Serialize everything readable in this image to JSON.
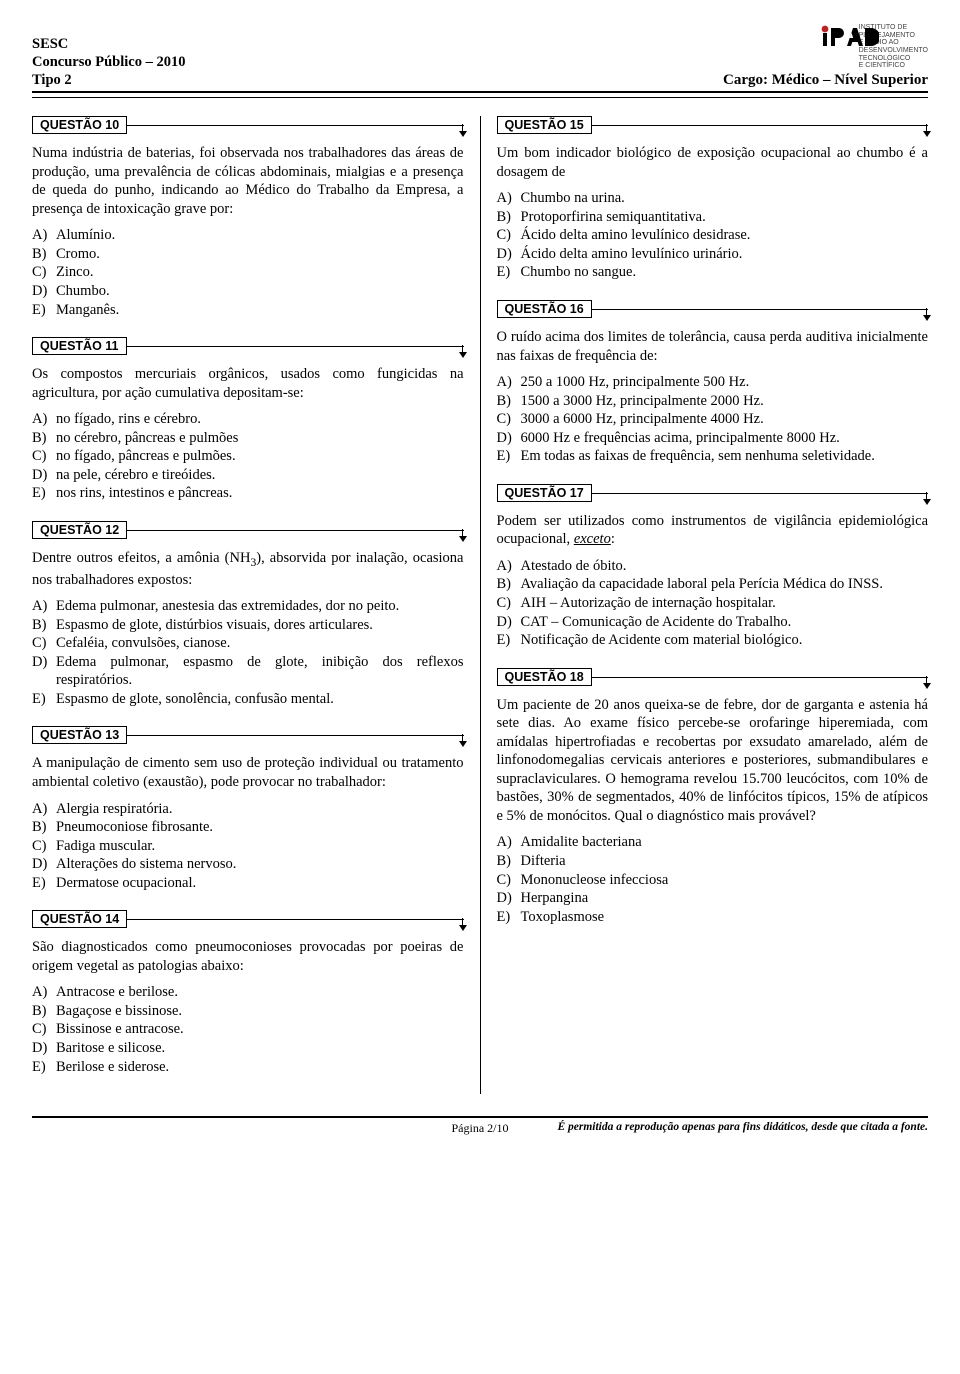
{
  "header": {
    "org": "SESC",
    "concurso": "Concurso Público – 2010",
    "tipo": "Tipo 2",
    "cargo": "Cargo: Médico – Nível Superior",
    "logo_name": "IPAD",
    "logo_sub": "INSTITUTO DE\nPLANEJAMENTO\nE APOIO AO\nDESENVOLVIMENTO\nTECNOLÓGICO\nE CIENTÍFICO"
  },
  "questions_left": [
    {
      "label": "QUESTÃO 10",
      "stem": "Numa indústria de baterias, foi observada nos trabalhadores das áreas de produção, uma prevalência de cólicas abdominais, mialgias e a presença de queda do punho, indicando ao Médico do Trabalho da Empresa, a presença de intoxicação grave por:",
      "opts": [
        "Alumínio.",
        "Cromo.",
        "Zinco.",
        "Chumbo.",
        "Manganês."
      ]
    },
    {
      "label": "QUESTÃO 11",
      "stem": "Os compostos mercuriais orgânicos, usados como fungicidas na agricultura, por ação cumulativa depositam-se:",
      "opts": [
        "no fígado, rins e cérebro.",
        "no cérebro, pâncreas e pulmões",
        "no fígado, pâncreas e pulmões.",
        "na pele, cérebro e tireóides.",
        "nos rins, intestinos e pâncreas."
      ]
    },
    {
      "label": "QUESTÃO 12",
      "stem_html": "Dentre outros efeitos, a amônia (NH<span class='sub'>3</span>), absorvida por inalação, ocasiona nos trabalhadores expostos:",
      "opts": [
        "Edema pulmonar, anestesia das extremidades, dor no peito.",
        "Espasmo de glote, distúrbios visuais, dores articulares.",
        "Cefaléia, convulsões, cianose.",
        "Edema pulmonar, espasmo de glote, inibição dos reflexos respiratórios.",
        "Espasmo de glote, sonolência, confusão mental."
      ]
    },
    {
      "label": "QUESTÃO 13",
      "stem": "A manipulação de cimento sem uso de proteção individual ou tratamento ambiental coletivo (exaustão), pode provocar no trabalhador:",
      "opts": [
        "Alergia respiratória.",
        "Pneumoconiose fibrosante.",
        "Fadiga muscular.",
        "Alterações do sistema nervoso.",
        "Dermatose ocupacional."
      ]
    },
    {
      "label": "QUESTÃO 14",
      "stem": "São diagnosticados como pneumoconioses provocadas por poeiras de origem vegetal as patologias abaixo:",
      "opts": [
        "Antracose e berilose.",
        "Bagaçose e bissinose.",
        "Bissinose e antracose.",
        "Baritose e silicose.",
        "Berilose e siderose."
      ]
    }
  ],
  "questions_right": [
    {
      "label": "QUESTÃO 15",
      "stem": "Um bom indicador biológico de exposição ocupacional ao chumbo é a dosagem de",
      "opts": [
        "Chumbo na urina.",
        "Protoporfirina semiquantitativa.",
        "Ácido delta amino levulínico desidrase.",
        "Ácido delta amino levulínico urinário.",
        "Chumbo no sangue."
      ]
    },
    {
      "label": "QUESTÃO 16",
      "stem": "O ruído acima dos limites de tolerância, causa perda auditiva inicialmente nas faixas de frequência de:",
      "opts": [
        "250 a 1000 Hz, principalmente 500 Hz.",
        "1500 a 3000 Hz, principalmente 2000 Hz.",
        "3000 a 6000 Hz, principalmente 4000 Hz.",
        "6000 Hz e frequências acima, principalmente 8000 Hz.",
        "Em todas as faixas de frequência, sem nenhuma seletividade."
      ]
    },
    {
      "label": "QUESTÃO 17",
      "stem_html": "Podem ser utilizados como instrumentos de vigilância epidemiológica ocupacional, <span class='ital'>exceto</span>:",
      "opts": [
        "Atestado de óbito.",
        "Avaliação da capacidade laboral pela Perícia Médica do INSS.",
        "AIH – Autorização de internação hospitalar.",
        "CAT – Comunicação de Acidente do Trabalho.",
        "Notificação de Acidente com material biológico."
      ]
    },
    {
      "label": "QUESTÃO 18",
      "stem": "Um paciente de 20 anos queixa-se de febre, dor de garganta e astenia há sete dias. Ao exame físico percebe-se orofaringe hiperemiada, com amídalas hipertrofiadas e recobertas por exsudato amarelado, além de linfonodomegalias cervicais anteriores e posteriores, submandibulares e supraclaviculares. O hemograma revelou 15.700 leucócitos, com 10% de bastões, 30% de segmentados, 40% de linfócitos típicos, 15% de atípicos e 5% de monócitos. Qual o diagnóstico mais provável?",
      "opts": [
        "Amidalite bacteriana",
        "Difteria",
        "Mononucleose infecciosa",
        "Herpangina",
        "Toxoplasmose"
      ]
    }
  ],
  "letters": [
    "A)",
    "B)",
    "C)",
    "D)",
    "E)"
  ],
  "footer": {
    "page": "Página 2/10",
    "note": "É permitida a reprodução apenas para fins didáticos, desde que citada a fonte."
  },
  "colors": {
    "text": "#000000",
    "bg": "#ffffff"
  }
}
